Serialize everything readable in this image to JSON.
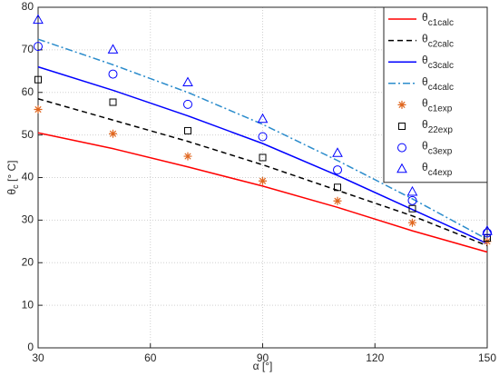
{
  "chart_data": {
    "type": "line",
    "x_label": "α [°]",
    "y_label": "θc [° C]",
    "x": [
      30,
      50,
      70,
      90,
      110,
      130,
      150
    ],
    "xlim": [
      30,
      150
    ],
    "xticks": [
      30,
      60,
      90,
      120,
      150
    ],
    "ylim": [
      0,
      80
    ],
    "yticks": [
      0,
      10,
      20,
      30,
      40,
      50,
      60,
      70,
      80
    ],
    "grid": true,
    "legend": "upper right",
    "series": [
      {
        "name": "θc1calc",
        "color": "#ff0000",
        "style": "solid",
        "values": [
          50.5,
          46.8,
          42.5,
          38,
          33,
          27.5,
          22.5
        ]
      },
      {
        "name": "θc2calc",
        "color": "#000000",
        "style": "dashed",
        "values": [
          58.5,
          53.5,
          48.5,
          43,
          37,
          31,
          24
        ]
      },
      {
        "name": "θc3calc",
        "color": "#0000ff",
        "style": "solid",
        "values": [
          66,
          60.5,
          54.5,
          48,
          40.5,
          32.5,
          24.5
        ]
      },
      {
        "name": "θc4calc",
        "color": "#2b8ccc",
        "style": "dashdot",
        "values": [
          72.5,
          66.5,
          60,
          52.5,
          44,
          35,
          25.5
        ]
      },
      {
        "name": "θc1exp",
        "color": "#e0661e",
        "marker": "asterisk",
        "values": [
          56,
          50.3,
          45,
          39.2,
          34.5,
          29.4,
          25
        ]
      },
      {
        "name": "θ22exp",
        "color": "#000000",
        "marker": "square",
        "values": [
          63,
          57.7,
          51,
          44.7,
          37.7,
          32.7,
          25.8
        ]
      },
      {
        "name": "θc3exp",
        "color": "#0000ff",
        "marker": "circle",
        "values": [
          70.8,
          64.3,
          57.2,
          49.6,
          41.8,
          34.6,
          27
        ]
      },
      {
        "name": "θc4exp",
        "color": "#0000ff",
        "marker": "triangle",
        "values": [
          77,
          70,
          62.3,
          53.7,
          45.7,
          36.6,
          27.4
        ]
      }
    ]
  }
}
